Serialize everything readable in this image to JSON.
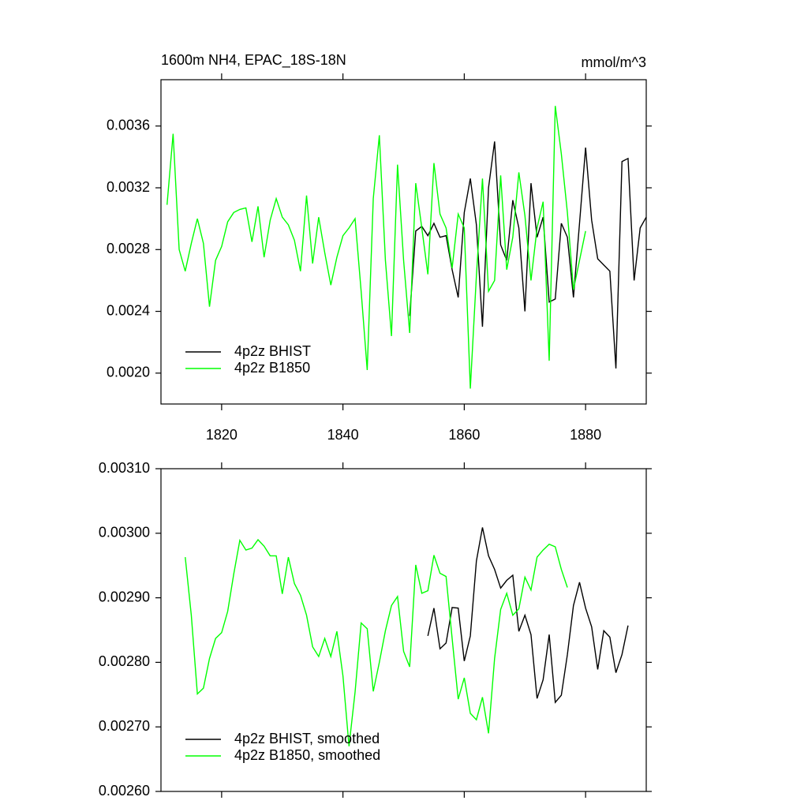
{
  "chart_data": [
    {
      "type": "line",
      "title": "1600m NH4, EPAC_18S-18N",
      "units": "mmol/m^3",
      "xlim": [
        1810,
        1890
      ],
      "xticks": [
        1820,
        1840,
        1860,
        1880
      ],
      "ylim": [
        0.0018,
        0.0039
      ],
      "yticks": [
        {
          "value": 0.002,
          "label": "0.0020"
        },
        0.0024,
        0.0028,
        0.0032,
        0.0036
      ],
      "legend": "lower left",
      "series": [
        {
          "name": "4p2z BHIST",
          "color": "#000000",
          "x": [
            1851,
            1852,
            1853,
            1854,
            1855,
            1856,
            1857,
            1858,
            1859,
            1860,
            1861,
            1862,
            1863,
            1864,
            1865,
            1866,
            1867,
            1868,
            1869,
            1870,
            1871,
            1872,
            1873,
            1874,
            1875,
            1876,
            1877,
            1878,
            1879,
            1880,
            1881,
            1882,
            1883,
            1884,
            1885,
            1886,
            1887,
            1888,
            1889,
            1890
          ],
          "values": [
            0.00237,
            0.00292,
            0.00295,
            0.00289,
            0.00297,
            0.00288,
            0.00289,
            0.00267,
            0.00249,
            0.00304,
            0.00326,
            0.00296,
            0.0023,
            0.0032,
            0.0035,
            0.00283,
            0.00273,
            0.00312,
            0.00294,
            0.0024,
            0.00323,
            0.00288,
            0.00301,
            0.00246,
            0.00248,
            0.00297,
            0.00288,
            0.00249,
            0.00297,
            0.00346,
            0.00299,
            0.00274,
            0.0027,
            0.00266,
            0.00203,
            0.00337,
            0.00339,
            0.0026,
            0.00294,
            0.00301
          ]
        },
        {
          "name": "4p2z B1850",
          "color": "#00ff00",
          "x": [
            1811,
            1812,
            1813,
            1814,
            1815,
            1816,
            1817,
            1818,
            1819,
            1820,
            1821,
            1822,
            1823,
            1824,
            1825,
            1826,
            1827,
            1828,
            1829,
            1830,
            1831,
            1832,
            1833,
            1834,
            1835,
            1836,
            1837,
            1838,
            1839,
            1840,
            1841,
            1842,
            1843,
            1844,
            1845,
            1846,
            1847,
            1848,
            1849,
            1850,
            1851,
            1852,
            1853,
            1854,
            1855,
            1856,
            1857,
            1858,
            1859,
            1860,
            1861,
            1862,
            1863,
            1864,
            1865,
            1866,
            1867,
            1868,
            1869,
            1870,
            1871,
            1872,
            1873,
            1874,
            1875,
            1876,
            1877,
            1878,
            1879,
            1880
          ],
          "values": [
            0.00309,
            0.00355,
            0.0028,
            0.00266,
            0.00284,
            0.003,
            0.00284,
            0.00243,
            0.00273,
            0.00282,
            0.00298,
            0.00304,
            0.00306,
            0.00307,
            0.00285,
            0.00308,
            0.00275,
            0.00299,
            0.00313,
            0.00301,
            0.00296,
            0.00286,
            0.00266,
            0.00315,
            0.00271,
            0.00301,
            0.00278,
            0.00257,
            0.00275,
            0.00289,
            0.00294,
            0.003,
            0.00253,
            0.00202,
            0.00313,
            0.00354,
            0.00273,
            0.00224,
            0.00335,
            0.00273,
            0.00226,
            0.00323,
            0.00294,
            0.00264,
            0.00336,
            0.00303,
            0.00294,
            0.00268,
            0.00303,
            0.00294,
            0.0019,
            0.00263,
            0.00326,
            0.00253,
            0.0026,
            0.00328,
            0.00267,
            0.00288,
            0.0033,
            0.00302,
            0.0026,
            0.00294,
            0.00311,
            0.00208,
            0.00373,
            0.00342,
            0.00304,
            0.00254,
            0.00273,
            0.00292
          ]
        }
      ]
    },
    {
      "type": "line",
      "xlim": [
        1810,
        1890
      ],
      "ylim": [
        0.0026,
        0.0031
      ],
      "yticks": [
        {
          "value": 0.0026,
          "label": "0.00260"
        },
        {
          "value": 0.0027,
          "label": "0.00270"
        },
        {
          "value": 0.0028,
          "label": "0.00280"
        },
        {
          "value": 0.0029,
          "label": "0.00290"
        },
        {
          "value": 0.003,
          "label": "0.00300"
        },
        {
          "value": 0.0031,
          "label": "0.00310"
        }
      ],
      "legend": "lower left",
      "series": [
        {
          "name": "4p2z BHIST, smoothed",
          "color": "#000000",
          "x": [
            1854,
            1855,
            1856,
            1857,
            1858,
            1859,
            1860,
            1861,
            1862,
            1863,
            1864,
            1865,
            1866,
            1867,
            1868,
            1869,
            1870,
            1871,
            1872,
            1873,
            1874,
            1875,
            1876,
            1877,
            1878,
            1879,
            1880,
            1881,
            1882,
            1883,
            1884,
            1885,
            1886,
            1887
          ],
          "values": [
            0.002841,
            0.002884,
            0.002821,
            0.00283,
            0.002885,
            0.002884,
            0.002802,
            0.002841,
            0.002957,
            0.003009,
            0.002965,
            0.002944,
            0.002915,
            0.002927,
            0.002935,
            0.002848,
            0.002873,
            0.002843,
            0.002744,
            0.002773,
            0.002843,
            0.002738,
            0.002749,
            0.002812,
            0.002888,
            0.002924,
            0.002884,
            0.002855,
            0.002789,
            0.002849,
            0.002839,
            0.002784,
            0.002812,
            0.002857
          ]
        },
        {
          "name": "4p2z B1850, smoothed",
          "color": "#00ff00",
          "x": [
            1814,
            1815,
            1816,
            1817,
            1818,
            1819,
            1820,
            1821,
            1822,
            1823,
            1824,
            1825,
            1826,
            1827,
            1828,
            1829,
            1830,
            1831,
            1832,
            1833,
            1834,
            1835,
            1836,
            1837,
            1838,
            1839,
            1840,
            1841,
            1842,
            1843,
            1844,
            1845,
            1846,
            1847,
            1848,
            1849,
            1850,
            1851,
            1852,
            1853,
            1854,
            1855,
            1856,
            1857,
            1858,
            1859,
            1860,
            1861,
            1862,
            1863,
            1864,
            1865,
            1866,
            1867,
            1868,
            1869,
            1870,
            1871,
            1872,
            1873,
            1874,
            1875,
            1876,
            1877
          ],
          "values": [
            0.002963,
            0.002873,
            0.002751,
            0.00276,
            0.002806,
            0.002837,
            0.002846,
            0.002879,
            0.002937,
            0.002989,
            0.002974,
            0.002977,
            0.00299,
            0.00298,
            0.002965,
            0.002965,
            0.002906,
            0.002963,
            0.002922,
            0.002904,
            0.002873,
            0.002824,
            0.002809,
            0.002837,
            0.002809,
            0.002848,
            0.002779,
            0.00267,
            0.002754,
            0.002861,
            0.002852,
            0.002755,
            0.0028,
            0.002849,
            0.002888,
            0.002902,
            0.002817,
            0.002793,
            0.002951,
            0.002907,
            0.002911,
            0.002966,
            0.002938,
            0.002933,
            0.002837,
            0.002743,
            0.002776,
            0.002721,
            0.002711,
            0.002746,
            0.00269,
            0.002806,
            0.002882,
            0.002907,
            0.002873,
            0.002883,
            0.002932,
            0.002912,
            0.002963,
            0.002974,
            0.002983,
            0.002979,
            0.002944,
            0.002916
          ]
        }
      ]
    }
  ]
}
